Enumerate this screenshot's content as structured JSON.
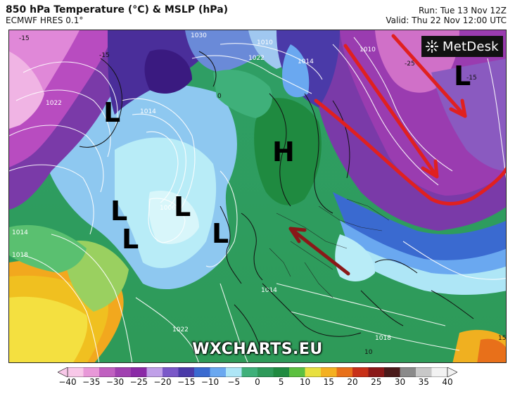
{
  "header": {
    "title": "850 hPa Temperature (°C) & MSLP (hPa)",
    "model": "ECMWF HRES 0.1°",
    "run": "Run: Tue 13 Nov 12Z",
    "valid": "Valid: Thu 22 Nov 12:00 UTC"
  },
  "logo": {
    "text": "MetDesk"
  },
  "watermark": "WXCHARTS.EU",
  "pressure_systems": [
    {
      "id": "L1",
      "text": "L"
    },
    {
      "id": "L2",
      "text": "L"
    },
    {
      "id": "L3",
      "text": "L"
    },
    {
      "id": "L4",
      "text": "L"
    },
    {
      "id": "L5",
      "text": "L"
    },
    {
      "id": "L6",
      "text": "L"
    },
    {
      "id": "H1",
      "text": "H"
    }
  ],
  "isobar_labels": [
    "1010",
    "1014",
    "1014",
    "1022",
    "1006",
    "1014",
    "1018",
    "1022",
    "1018",
    "1014",
    "1030",
    "1022",
    "1010"
  ],
  "temp_labels": [
    "-15",
    "-15",
    "0",
    "-25",
    "-15",
    "10",
    "15"
  ],
  "colorbar": {
    "ticks": [
      "−40",
      "−35",
      "−30",
      "−25",
      "−20",
      "−15",
      "−10",
      "−5",
      "0",
      "5",
      "10",
      "15",
      "20",
      "25",
      "30",
      "35",
      "40"
    ],
    "colors": [
      "#f8c8e8",
      "#e898d8",
      "#c060c0",
      "#a040b0",
      "#8a2aa6",
      "#c0a0e8",
      "#7a58c8",
      "#4a3aa8",
      "#3a6ad0",
      "#6aa8f0",
      "#aee6f6",
      "#3fb07a",
      "#2e9a5a",
      "#1f8a40",
      "#5cc040",
      "#e8e040",
      "#f4b020",
      "#e8701a",
      "#c83018",
      "#8a1818",
      "#4a1a1a",
      "#8a8a8a",
      "#c8c8c8",
      "#f2f2f2"
    ]
  },
  "colors": {
    "front_arrow": "#e02020",
    "dark_arrow": "#8a1818",
    "land_coast": "#111111"
  }
}
